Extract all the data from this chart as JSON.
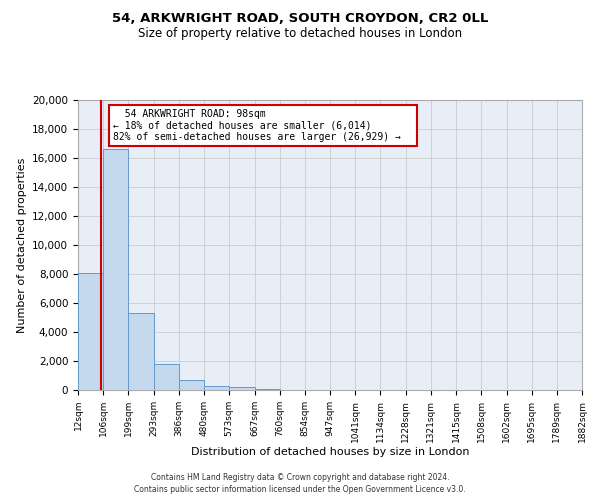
{
  "title": "54, ARKWRIGHT ROAD, SOUTH CROYDON, CR2 0LL",
  "subtitle": "Size of property relative to detached houses in London",
  "xlabel": "Distribution of detached houses by size in London",
  "ylabel": "Number of detached properties",
  "bar_edges": [
    12,
    106,
    199,
    293,
    386,
    480,
    573,
    667,
    760,
    854,
    947,
    1041,
    1134,
    1228,
    1321,
    1415,
    1508,
    1602,
    1695,
    1789,
    1882
  ],
  "bar_heights": [
    8100,
    16600,
    5300,
    1800,
    700,
    300,
    200,
    100,
    0,
    0,
    0,
    0,
    0,
    0,
    0,
    0,
    0,
    0,
    0,
    0
  ],
  "property_size": 98,
  "property_label": "54 ARKWRIGHT ROAD: 98sqm",
  "annotation_line1": "← 18% of detached houses are smaller (6,014)",
  "annotation_line2": "82% of semi-detached houses are larger (26,929) →",
  "bar_color": "#c5d9ee",
  "bar_edge_color": "#6699cc",
  "vline_color": "#cc0000",
  "grid_color": "#cccccc",
  "bg_color": "#e8eef8",
  "ylim": [
    0,
    20000
  ],
  "yticks": [
    0,
    2000,
    4000,
    6000,
    8000,
    10000,
    12000,
    14000,
    16000,
    18000,
    20000
  ],
  "footer1": "Contains HM Land Registry data © Crown copyright and database right 2024.",
  "footer2": "Contains public sector information licensed under the Open Government Licence v3.0."
}
